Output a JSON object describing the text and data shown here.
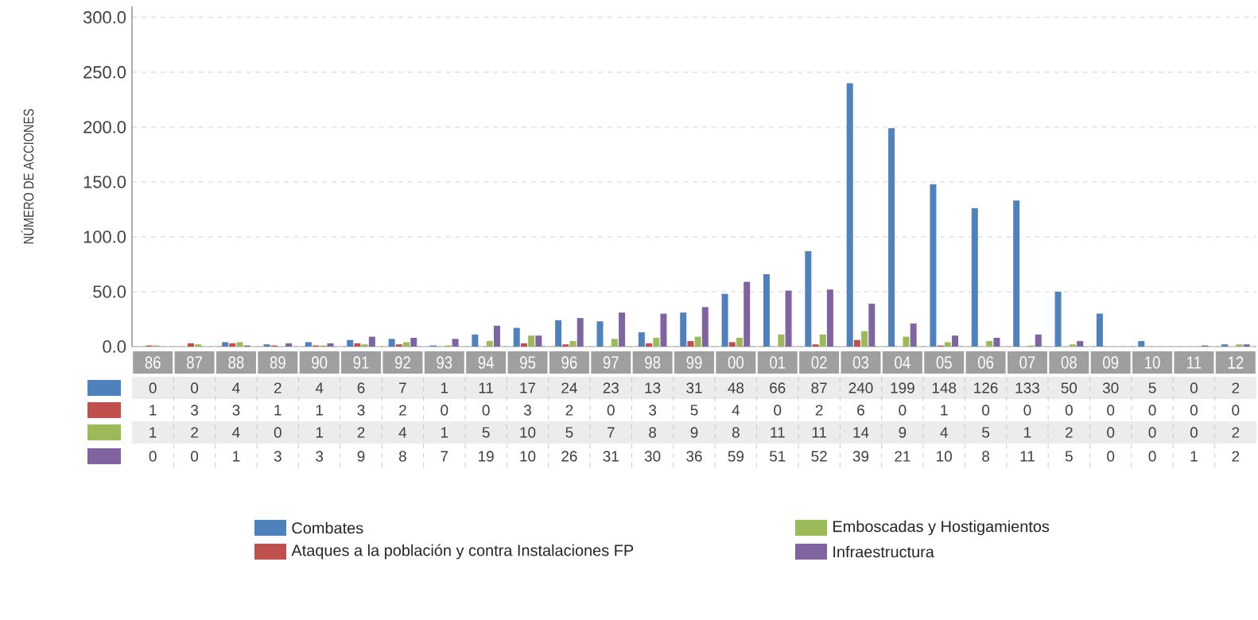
{
  "chart_data": {
    "type": "bar",
    "ylabel": "NÚMERO DE ACCIONES",
    "categories": [
      "86",
      "87",
      "88",
      "89",
      "90",
      "91",
      "92",
      "93",
      "94",
      "95",
      "96",
      "97",
      "98",
      "99",
      "00",
      "01",
      "02",
      "03",
      "04",
      "05",
      "06",
      "07",
      "08",
      "09",
      "10",
      "11",
      "12"
    ],
    "series": [
      {
        "name": "Combates",
        "color": "#4f81bd",
        "values": [
          0,
          0,
          4,
          2,
          4,
          6,
          7,
          1,
          11,
          17,
          24,
          23,
          13,
          31,
          48,
          66,
          87,
          240,
          199,
          148,
          126,
          133,
          50,
          30,
          5,
          0,
          2
        ]
      },
      {
        "name": "Ataques a la población y contra  Instalaciones FP",
        "color": "#c0504d",
        "values": [
          1,
          3,
          3,
          1,
          1,
          3,
          2,
          0,
          0,
          3,
          2,
          0,
          3,
          5,
          4,
          0,
          2,
          6,
          0,
          1,
          0,
          0,
          0,
          0,
          0,
          0,
          0
        ]
      },
      {
        "name": "Emboscadas y Hostigamientos",
        "color": "#9bbb59",
        "values": [
          1,
          2,
          4,
          0,
          1,
          2,
          4,
          1,
          5,
          10,
          5,
          7,
          8,
          9,
          8,
          11,
          11,
          14,
          9,
          4,
          5,
          1,
          2,
          0,
          0,
          0,
          2
        ]
      },
      {
        "name": "Infraestructura",
        "color": "#8064a2",
        "values": [
          0,
          0,
          1,
          3,
          3,
          9,
          8,
          7,
          19,
          10,
          26,
          31,
          30,
          36,
          59,
          51,
          52,
          39,
          21,
          10,
          8,
          11,
          5,
          0,
          0,
          1,
          2
        ]
      }
    ],
    "ylim": [
      0,
      310
    ],
    "yticks": [
      {
        "value": 0,
        "label": "0.0"
      },
      {
        "value": 50,
        "label": "50.0"
      },
      {
        "value": 100,
        "label": "100.0"
      },
      {
        "value": 150,
        "label": "150.0"
      },
      {
        "value": 200,
        "label": "200.0"
      },
      {
        "value": 250,
        "label": "250.0"
      },
      {
        "value": 300,
        "label": "300.0"
      }
    ],
    "grid": "y",
    "legend": "bottom",
    "data_labels": true
  }
}
